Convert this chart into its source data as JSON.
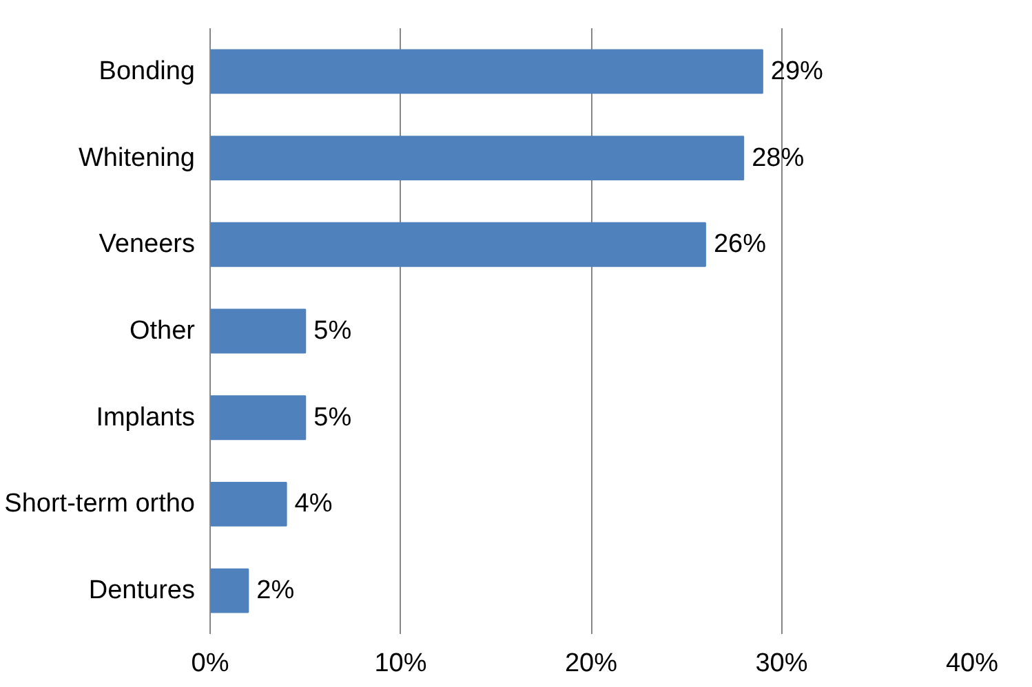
{
  "chart_data": {
    "type": "bar",
    "orientation": "horizontal",
    "categories": [
      "Bonding",
      "Whitening",
      "Veneers",
      "Other",
      "Implants",
      "Short-term ortho",
      "Dentures"
    ],
    "values": [
      29,
      28,
      26,
      5,
      5,
      4,
      2
    ],
    "value_labels": [
      "29%",
      "28%",
      "26%",
      "5%",
      "5%",
      "4%",
      "2%"
    ],
    "color": "#4f81bd",
    "xlim": [
      0,
      40
    ],
    "xticks": [
      {
        "value": 0,
        "label": "0%"
      },
      {
        "value": 10,
        "label": "10%"
      },
      {
        "value": 20,
        "label": "20%"
      },
      {
        "value": 30,
        "label": "30%"
      },
      {
        "value": 40,
        "label": "40%"
      }
    ],
    "grid": "x"
  }
}
